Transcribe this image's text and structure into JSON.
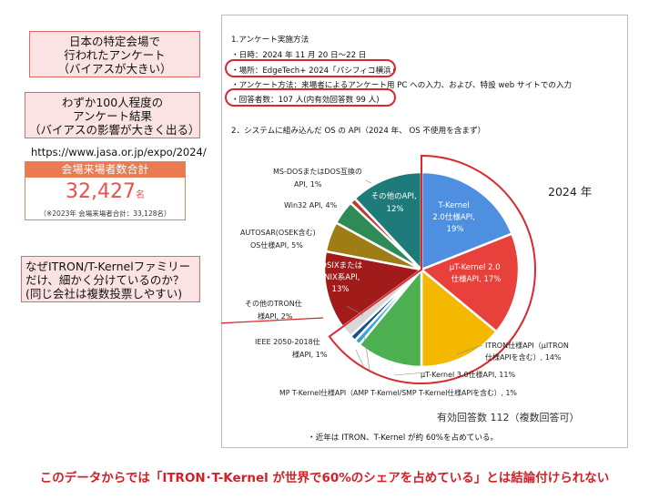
{
  "callouts": {
    "top": [
      "日本の特定会場で",
      "行われたアンケート",
      "（バイアスが大きい）"
    ],
    "middle": [
      "わずか100人程度の",
      "アンケート結果",
      "（バイアスの影響が大きく出る）"
    ],
    "bottom": [
      "なぜITRON/T-Kernelファミリー",
      "だけ、細かく分けているのか？",
      "(同じ会社は複数投票しやすい)"
    ]
  },
  "jasa": {
    "url": "https://www.jasa.or.jp/expo/2024/",
    "box_title": "会場来場者数合計",
    "total": "32,427",
    "unit": "名",
    "previous": "（※2023年 会場来場者合計：33,128名）"
  },
  "document": {
    "heading1": "1.アンケート実施方法",
    "date_line": "・日時：2024 年 11 月 20 日～22 日",
    "venue_line": "・場所：EdgeTech+ 2024「パシフィコ横浜」",
    "method_line": "・アンケート方法：来場者によるアンケート用 PC への入力、および、特設 web サイトでの入力",
    "respondents_line": "・回答者数：107 人(内有効回答数 99 人)",
    "heading2": "2．システムに組み込んだ OS の API（2024 年、 OS 不使用を含まず）",
    "footnote": "・近年は ITRON、T-Kernel が約 60%を占めている。"
  },
  "chart_data": {
    "type": "pie",
    "title": "2024 年",
    "note": "有効回答数 112（複数回答可）",
    "slices": [
      {
        "name": "T-Kernel 2.0仕様API",
        "value": 19,
        "color": "#4f8fe0"
      },
      {
        "name": "μT-Kernel 2.0仕様API",
        "value": 17,
        "color": "#e8403a"
      },
      {
        "name": "ITRON仕様API（μITRON仕様APIを含む）",
        "value": 14,
        "color": "#f5b800"
      },
      {
        "name": "μT-Kernel 3.0仕様API",
        "value": 11,
        "color": "#4caf50"
      },
      {
        "name": "MP T-Kernel仕様API（AMP T-Kernel/SMP T-Kernel仕様APIを含む）",
        "value": 1,
        "color": "#2fa8d8"
      },
      {
        "name": "IEEE 2050-2018仕様API",
        "value": 1,
        "color": "#1f4e8c"
      },
      {
        "name": "その他のTRON仕様API",
        "value": 2,
        "color": "#d8d8d8"
      },
      {
        "name": "POSIXまたはUNIX系API",
        "value": 13,
        "color": "#a11b1b"
      },
      {
        "name": "AUTOSAR(OSEK含む)OS仕様API",
        "value": 5,
        "color": "#9e7c16"
      },
      {
        "name": "Win32 API",
        "value": 4,
        "color": "#2e8b57"
      },
      {
        "name": "MS-DOSまたはDOS互換のAPI",
        "value": 1,
        "color": "#c0392b"
      },
      {
        "name": "その他のAPI",
        "value": 12,
        "color": "#1f7a7a"
      }
    ],
    "labels": {
      "tkernel": [
        "T-Kernel",
        "2.0仕様API,",
        "19%"
      ],
      "ut2": [
        "μT-Kernel 2.0",
        "仕様API, 17%"
      ],
      "itron": [
        "ITRON仕様API（μITRON",
        "仕様APIを含む）, 14%"
      ],
      "ut3": "μT-Kernel 3.0仕様API, 11%",
      "mp": "MP T-Kernel仕様API（AMP T-Kernel/SMP T-Kernel仕様APIを含む）, 1%",
      "ieee": [
        "IEEE 2050-2018仕",
        "様API, 1%"
      ],
      "othertron": [
        "その他のTRON仕",
        "様API, 2%"
      ],
      "posix": [
        "POSIXまたは",
        "UNIX系API,",
        "13%"
      ],
      "autosar": [
        "AUTOSAR(OSEK含む)",
        "OS仕様API, 5%"
      ],
      "win32": "Win32 API, 4%",
      "msdos": [
        "MS-DOSまたはDOS互換の",
        "API, 1%"
      ],
      "otherapi": [
        "その他のAPI,",
        "12%"
      ]
    }
  },
  "conclusion": "このデータからでは「ITRON･T-Kernel が世界で60%のシェアを占めている」とは結論付けられない"
}
